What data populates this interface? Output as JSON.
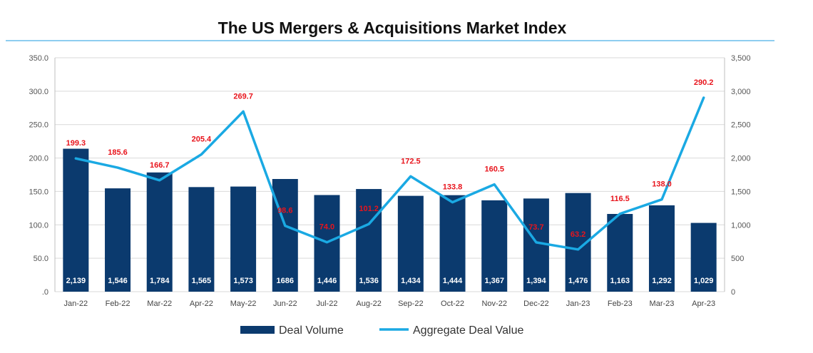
{
  "chart_data": {
    "type": "bar",
    "title": "The US Mergers & Acquisitions Market Index",
    "categories": [
      "Jan-22",
      "Feb-22",
      "Mar-22",
      "Apr-22",
      "May-22",
      "Jun-22",
      "Jul-22",
      "Aug-22",
      "Sep-22",
      "Oct-22",
      "Nov-22",
      "Dec-22",
      "Jan-23",
      "Feb-23",
      "Mar-23",
      "Apr-23"
    ],
    "series": [
      {
        "name": "Deal Volume",
        "type": "bar",
        "axis": "left",
        "color": "#0b3a6e",
        "values": [
          213.9,
          154.6,
          178.4,
          156.5,
          157.3,
          168.6,
          144.6,
          153.6,
          143.4,
          144.4,
          136.7,
          139.4,
          147.6,
          116.3,
          129.2,
          102.9
        ],
        "labels": [
          "2,139",
          "1,546",
          "1,784",
          "1,565",
          "1,573",
          "1686",
          "1,446",
          "1,536",
          "1,434",
          "1,444",
          "1,367",
          "1,394",
          "1,476",
          "1,163",
          "1,292",
          "1,029"
        ]
      },
      {
        "name": "Aggregate Deal Value",
        "type": "line",
        "axis": "right",
        "color": "#1aa9e3",
        "values": [
          1993,
          1856,
          1667,
          2054,
          2697,
          986,
          740,
          1012,
          1725,
          1338,
          1605,
          737,
          632,
          1165,
          1380,
          2902
        ],
        "labels": [
          "199.3",
          "185.6",
          "166.7",
          "205.4",
          "269.7",
          "98.6",
          "74.0",
          "101.2",
          "172.5",
          "133.8",
          "160.5",
          "73.7",
          "63.2",
          "116.5",
          "138.0",
          "290.2"
        ]
      }
    ],
    "y_left": {
      "min": 0,
      "max": 350,
      "ticks": [
        ".0",
        "50.0",
        "100.0",
        "150.0",
        "200.0",
        "250.0",
        "300.0",
        "350.0"
      ]
    },
    "y_right": {
      "min": 0,
      "max": 3500,
      "ticks": [
        "0",
        "500",
        "1,000",
        "1,500",
        "2,000",
        "2,500",
        "3,000",
        "3,500"
      ]
    },
    "grid": true,
    "legend": "bottom"
  }
}
